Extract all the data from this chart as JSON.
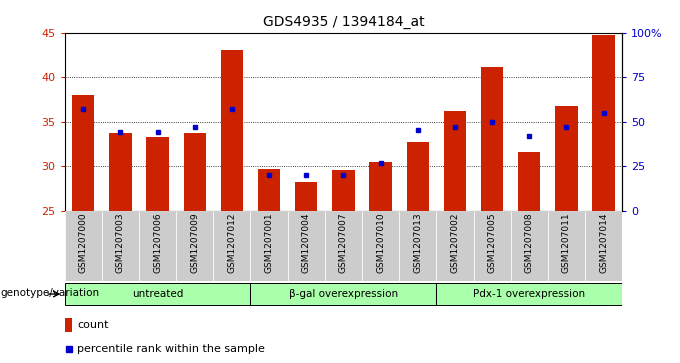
{
  "title": "GDS4935 / 1394184_at",
  "samples": [
    "GSM1207000",
    "GSM1207003",
    "GSM1207006",
    "GSM1207009",
    "GSM1207012",
    "GSM1207001",
    "GSM1207004",
    "GSM1207007",
    "GSM1207010",
    "GSM1207013",
    "GSM1207002",
    "GSM1207005",
    "GSM1207008",
    "GSM1207011",
    "GSM1207014"
  ],
  "counts": [
    38.0,
    33.7,
    33.3,
    33.7,
    43.0,
    29.7,
    28.2,
    29.6,
    30.5,
    32.7,
    36.2,
    41.1,
    31.6,
    36.7,
    44.7
  ],
  "percentiles": [
    57,
    44,
    44,
    47,
    57,
    20,
    20,
    20,
    27,
    45,
    47,
    50,
    42,
    47,
    55
  ],
  "groups": [
    {
      "label": "untreated",
      "start": 0,
      "end": 5
    },
    {
      "label": "β-gal overexpression",
      "start": 5,
      "end": 10
    },
    {
      "label": "Pdx-1 overexpression",
      "start": 10,
      "end": 15
    }
  ],
  "ylim_left": [
    25,
    45
  ],
  "ylim_right": [
    0,
    100
  ],
  "yticks_left": [
    25,
    30,
    35,
    40,
    45
  ],
  "yticks_right": [
    0,
    25,
    50,
    75,
    100
  ],
  "yticklabels_right": [
    "0",
    "25",
    "50",
    "75",
    "100%"
  ],
  "bar_color": "#cc2200",
  "pct_color": "#0000cc",
  "bg_color": "#cccccc",
  "group_bg": "#aaffaa",
  "title_color": "#000000",
  "left_tick_color": "#cc2200",
  "right_tick_color": "#0000cc",
  "dotted_lines": [
    30,
    35,
    40
  ],
  "bar_width": 0.6
}
